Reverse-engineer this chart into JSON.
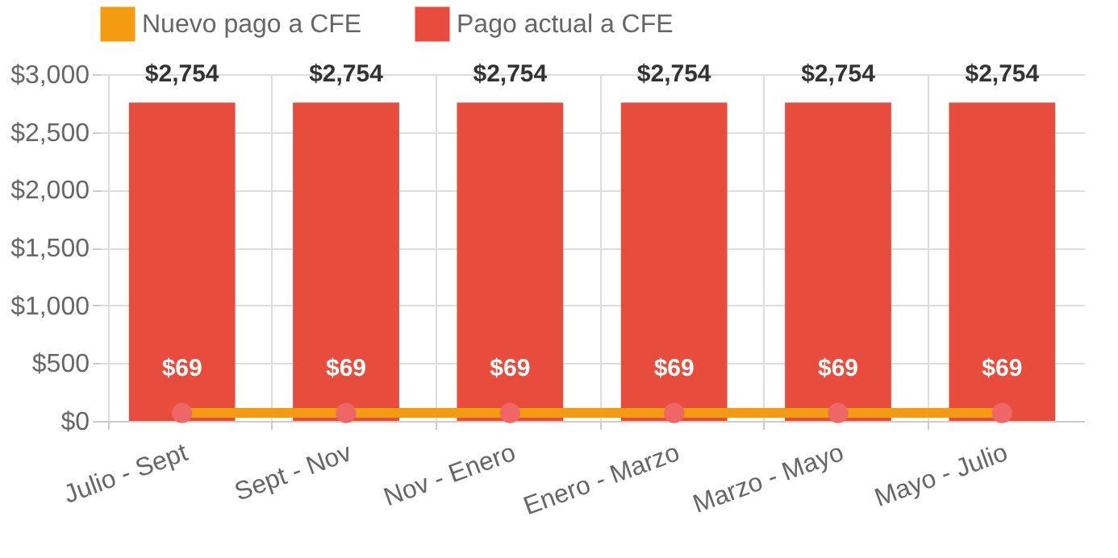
{
  "chart_data": {
    "type": "bar",
    "categories": [
      "Julio - Sept",
      "Sept - Nov",
      "Nov - Enero",
      "Enero - Marzo",
      "Marzo - Mayo",
      "Mayo - Julio"
    ],
    "series": [
      {
        "name": "Nuevo pago a CFE",
        "type": "line",
        "color": "#f39c12",
        "values": [
          69,
          69,
          69,
          69,
          69,
          69
        ],
        "value_labels": [
          "$69",
          "$69",
          "$69",
          "$69",
          "$69",
          "$69"
        ]
      },
      {
        "name": "Pago actual a CFE",
        "type": "bar",
        "color": "#e74c3c",
        "values": [
          2754,
          2754,
          2754,
          2754,
          2754,
          2754
        ],
        "value_labels": [
          "$2,754",
          "$2,754",
          "$2,754",
          "$2,754",
          "$2,754",
          "$2,754"
        ]
      }
    ],
    "ylim": [
      0,
      3000
    ],
    "yticks": [
      {
        "value": 0,
        "label": "$0"
      },
      {
        "value": 500,
        "label": "$500"
      },
      {
        "value": 1000,
        "label": "$1,000"
      },
      {
        "value": 1500,
        "label": "$1,500"
      },
      {
        "value": 2000,
        "label": "$2,000"
      },
      {
        "value": 2500,
        "label": "$2,500"
      },
      {
        "value": 3000,
        "label": "$3,000"
      }
    ],
    "grid": true,
    "legend": "top",
    "marker": "circle"
  }
}
